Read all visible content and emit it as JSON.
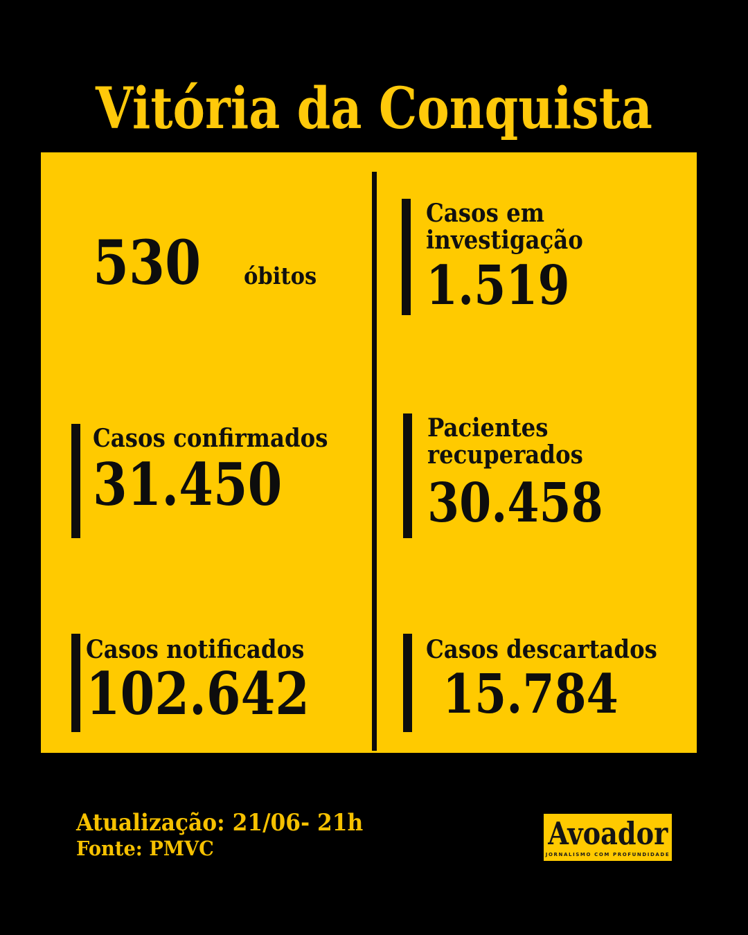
{
  "title": "Vitória da Conquista",
  "colors": {
    "background": "#000000",
    "card_yellow": "#FFCA00",
    "title_yellow": "#FFC90A",
    "footer_text_yellow": "#F6C100",
    "text_black": "#0D0D0D"
  },
  "card": {
    "left_column": [
      {
        "value": "530",
        "label": "óbitos"
      },
      {
        "label": "Casos confirmados",
        "value": "31.450"
      },
      {
        "label": "Casos notificados",
        "value": "102.642"
      }
    ],
    "right_column": [
      {
        "label": "Casos em\ninvestigação",
        "value": "1.519"
      },
      {
        "label": "Pacientes\nrecuperados",
        "value": "30.458"
      },
      {
        "label": "Casos descartados",
        "value": "15.784"
      }
    ]
  },
  "footer": {
    "update_text": "Atualização: 21/06- 21h",
    "source_text": "Fonte: PMVC",
    "logo": {
      "wordmark": "Avoador",
      "tagline": "JORNALISMO COM PROFUNDIDADE"
    }
  },
  "chart_data": {
    "type": "table",
    "title": "Vitória da Conquista",
    "categories": [
      "óbitos",
      "Casos em investigação",
      "Casos confirmados",
      "Pacientes recuperados",
      "Casos notificados",
      "Casos descartados"
    ],
    "values": [
      530,
      1519,
      31450,
      30458,
      102642,
      15784
    ],
    "source": "PMVC",
    "updated": "21/06- 21h"
  }
}
